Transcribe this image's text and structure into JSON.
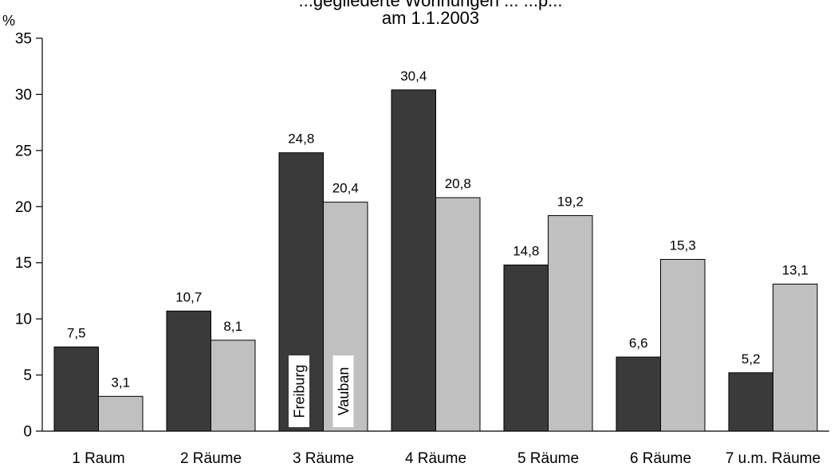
{
  "chart_data": {
    "type": "bar",
    "title_lines": [
      "am 1.1.2003"
    ],
    "title_partial_top": "...gegliederte Wohnungen ... ...p...",
    "ylabel": "%",
    "xlabel": "",
    "ylim": [
      0,
      35
    ],
    "y_ticks": [
      "0",
      "5",
      "10",
      "15",
      "20",
      "25",
      "30",
      "35"
    ],
    "categories": [
      "1 Raum",
      "2 Räume",
      "3 Räume",
      "4 Räume",
      "5 Räume",
      "6 Räume",
      "7 u.m. Räume"
    ],
    "series": [
      {
        "name": "Freiburg",
        "color": "#3a3a3a",
        "values": [
          7.5,
          10.7,
          24.8,
          30.4,
          14.8,
          6.6,
          5.2
        ],
        "value_labels": [
          "7,5",
          "10,7",
          "24,8",
          "30,4",
          "14,8",
          "6,6",
          "5,2"
        ]
      },
      {
        "name": "Vauban",
        "color": "#c0c0c0",
        "values": [
          3.1,
          8.1,
          20.4,
          20.8,
          19.2,
          15.3,
          13.1
        ],
        "value_labels": [
          "3,1",
          "8,1",
          "20,4",
          "20,8",
          "19,2",
          "15,3",
          "13,1"
        ]
      }
    ],
    "legend": "inside bars (rotated), category 3 Räume",
    "grid": false
  }
}
